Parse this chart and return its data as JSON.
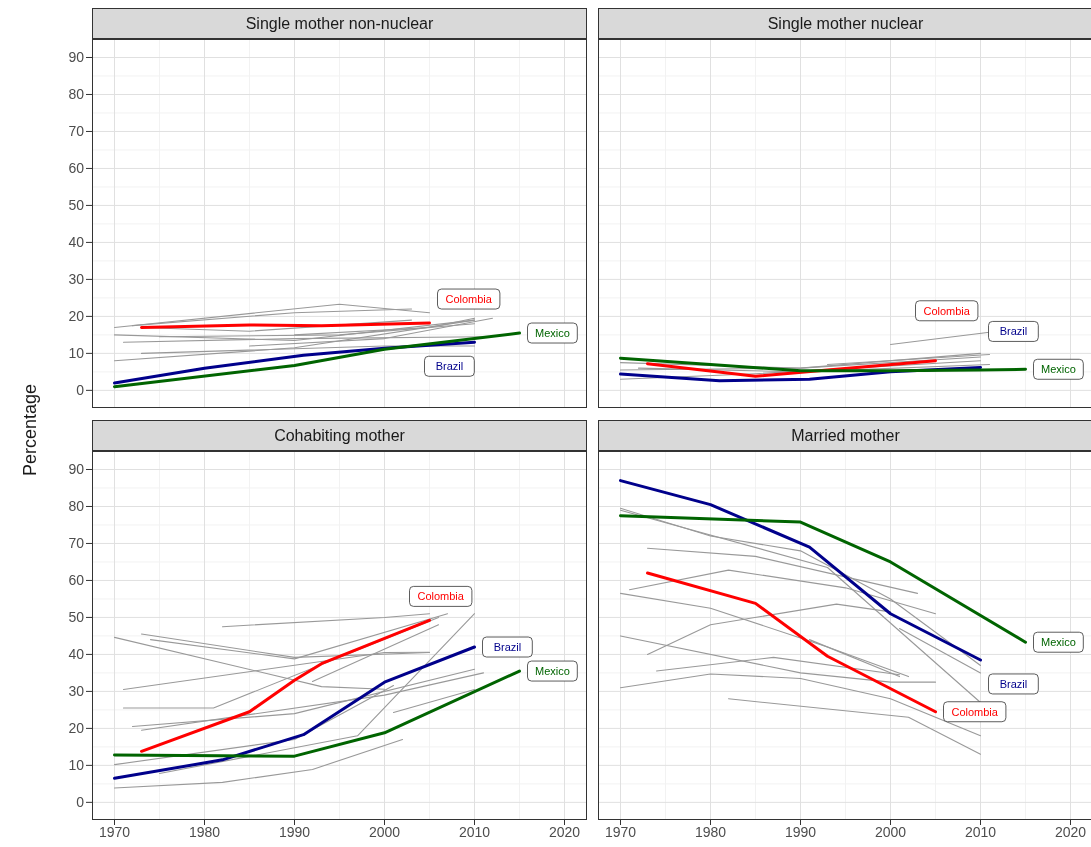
{
  "chart_data": [
    {
      "type": "line",
      "title": "Single mother non-nuclear",
      "ylabel": "Percentage",
      "xlim": [
        1967.5,
        2022.5
      ],
      "ylim": [
        -4.5,
        95
      ],
      "xticks": [
        1970,
        1980,
        1990,
        2000,
        2010,
        2020
      ],
      "yticks": [
        0,
        10,
        20,
        30,
        40,
        50,
        60,
        70,
        80,
        90
      ],
      "grid": true,
      "tick_labels": "y",
      "series": [
        {
          "color": "#999999",
          "x": [
            1970,
            1990,
            2010
          ],
          "values": [
            15,
            13.5,
            19
          ]
        },
        {
          "color": "#999999",
          "x": [
            1970,
            1990,
            2010
          ],
          "values": [
            8,
            11.5,
            19
          ]
        },
        {
          "color": "#999999",
          "x": [
            1973,
            2000,
            2010
          ],
          "values": [
            10,
            12,
            12
          ]
        },
        {
          "color": "#999999",
          "x": [
            1971,
            1990,
            2011
          ],
          "values": [
            13,
            14,
            14.5
          ]
        },
        {
          "color": "#999999",
          "x": [
            1973,
            1985,
            2003
          ],
          "values": [
            17,
            16,
            19
          ]
        },
        {
          "color": "#999999",
          "x": [
            1990,
            2005,
            2010
          ],
          "values": [
            15,
            17,
            19.5
          ]
        },
        {
          "color": "#999999",
          "x": [
            1975,
            1995,
            2010
          ],
          "values": [
            14.5,
            15,
            18
          ]
        },
        {
          "color": "#999999",
          "x": [
            1970,
            1995,
            2005
          ],
          "values": [
            17,
            23.3,
            21
          ]
        },
        {
          "color": "#999999",
          "x": [
            1972,
            1990,
            2003
          ],
          "values": [
            17.5,
            21,
            22
          ]
        },
        {
          "color": "#999999",
          "x": [
            1985,
            2000,
            2012
          ],
          "values": [
            12,
            14,
            19.5
          ]
        },
        {
          "name": "Colombia",
          "color": "#ff0000",
          "x": [
            1973,
            1985,
            1993,
            2005
          ],
          "values": [
            17,
            17.7,
            17.5,
            18.2
          ]
        },
        {
          "name": "Brazil",
          "color": "#00008b",
          "x": [
            1970,
            1980,
            1991,
            2000,
            2010
          ],
          "values": [
            2,
            6,
            9.5,
            11.4,
            13
          ]
        },
        {
          "name": "Mexico",
          "color": "#006400",
          "x": [
            1970,
            1990,
            2000,
            2015
          ],
          "values": [
            1,
            6.7,
            11.1,
            15.5
          ]
        }
      ]
    },
    {
      "type": "line",
      "title": "Single mother nuclear",
      "xlim": [
        1967.5,
        2022.5
      ],
      "ylim": [
        -4.5,
        95
      ],
      "xticks": [
        1970,
        1980,
        1990,
        2000,
        2010,
        2020
      ],
      "yticks": [
        0,
        10,
        20,
        30,
        40,
        50,
        60,
        70,
        80,
        90
      ],
      "grid": true,
      "tick_labels": false,
      "series": [
        {
          "color": "#999999",
          "x": [
            1970,
            1990,
            2010
          ],
          "values": [
            7.5,
            6,
            10
          ]
        },
        {
          "color": "#999999",
          "x": [
            1993,
            2011
          ],
          "values": [
            7,
            9.7
          ]
        },
        {
          "color": "#999999",
          "x": [
            1970,
            1985,
            2010
          ],
          "values": [
            3,
            4.5,
            8
          ]
        },
        {
          "color": "#999999",
          "x": [
            1970,
            1990,
            2010
          ],
          "values": [
            5.5,
            6,
            9
          ]
        },
        {
          "color": "#999999",
          "x": [
            2000,
            2011
          ],
          "values": [
            12.4,
            15.7
          ]
        },
        {
          "color": "#999999",
          "x": [
            1972,
            1990,
            2011
          ],
          "values": [
            6,
            5,
            7
          ]
        },
        {
          "name": "Colombia",
          "color": "#ff0000",
          "x": [
            1973,
            1985,
            1993,
            2005
          ],
          "values": [
            7.2,
            3.8,
            5.5,
            8
          ]
        },
        {
          "name": "Brazil",
          "color": "#00008b",
          "x": [
            1970,
            1981,
            1991,
            2000,
            2010
          ],
          "values": [
            4.4,
            2.6,
            3,
            5,
            6.2
          ]
        },
        {
          "name": "Mexico",
          "color": "#006400",
          "x": [
            1970,
            1980,
            1990,
            2000,
            2010,
            2015
          ],
          "values": [
            8.7,
            7,
            5.3,
            5.3,
            5.5,
            5.7
          ]
        }
      ]
    },
    {
      "type": "line",
      "title": "Cohabiting mother",
      "xlim": [
        1967.5,
        2022.5
      ],
      "ylim": [
        -4.5,
        95
      ],
      "xticks": [
        1970,
        1980,
        1990,
        2000,
        2010,
        2020
      ],
      "yticks": [
        0,
        10,
        20,
        30,
        40,
        50,
        60,
        70,
        80,
        90
      ],
      "grid": true,
      "series": [
        {
          "color": "#999999",
          "x": [
            1970,
            1993,
            2000
          ],
          "values": [
            44.6,
            31.3,
            30.6
          ]
        },
        {
          "color": "#999999",
          "x": [
            1973,
            1990,
            2005
          ],
          "values": [
            45.5,
            39.2,
            40.5
          ]
        },
        {
          "color": "#999999",
          "x": [
            1982,
            2000,
            2005
          ],
          "values": [
            47.5,
            50,
            51
          ]
        },
        {
          "color": "#999999",
          "x": [
            1974,
            1990,
            2007
          ],
          "values": [
            44,
            38.8,
            51
          ]
        },
        {
          "color": "#999999",
          "x": [
            1971,
            2000,
            2005
          ],
          "values": [
            30.5,
            40.5,
            40.6
          ]
        },
        {
          "color": "#999999",
          "x": [
            1971,
            1981,
            2006
          ],
          "values": [
            25.5,
            25.5,
            50
          ]
        },
        {
          "color": "#999999",
          "x": [
            1992,
            2006
          ],
          "values": [
            32.7,
            48
          ]
        },
        {
          "color": "#999999",
          "x": [
            1972,
            1990,
            2010
          ],
          "values": [
            20.5,
            24,
            36
          ]
        },
        {
          "color": "#999999",
          "x": [
            1973,
            2000,
            2011
          ],
          "values": [
            19.5,
            29,
            35
          ]
        },
        {
          "color": "#999999",
          "x": [
            1970,
            1990,
            2001
          ],
          "values": [
            10.2,
            17,
            31.6
          ]
        },
        {
          "color": "#999999",
          "x": [
            1975,
            1997,
            2010
          ],
          "values": [
            7.8,
            18,
            51
          ]
        },
        {
          "color": "#999999",
          "x": [
            1970,
            1982,
            1992,
            2002
          ],
          "values": [
            3.9,
            5.4,
            8.9,
            17
          ]
        },
        {
          "color": "#999999",
          "x": [
            2001,
            2010
          ],
          "values": [
            24.3,
            30.5
          ]
        },
        {
          "name": "Colombia",
          "color": "#ff0000",
          "x": [
            1973,
            1985,
            1990,
            1993,
            2005
          ],
          "values": [
            13.8,
            24.5,
            33,
            37.5,
            49.2
          ]
        },
        {
          "name": "Brazil",
          "color": "#00008b",
          "x": [
            1970,
            1982,
            1991,
            2000,
            2010
          ],
          "values": [
            6.5,
            11.5,
            18.3,
            32.5,
            42
          ]
        },
        {
          "name": "Mexico",
          "color": "#006400",
          "x": [
            1970,
            1990,
            2000,
            2015
          ],
          "values": [
            12.8,
            12.5,
            18.8,
            35.5
          ]
        }
      ]
    },
    {
      "type": "line",
      "title": "Married mother",
      "xlim": [
        1967.5,
        2022.5
      ],
      "ylim": [
        -4.5,
        95
      ],
      "xticks": [
        1970,
        1980,
        1990,
        2000,
        2010,
        2020
      ],
      "yticks": [
        0,
        10,
        20,
        30,
        40,
        50,
        60,
        70,
        80,
        90
      ],
      "grid": true,
      "tick_labels": "x",
      "series": [
        {
          "color": "#999999",
          "x": [
            1970,
            1980,
            1990,
            2000,
            2010
          ],
          "values": [
            79.5,
            72,
            68,
            55,
            37
          ]
        },
        {
          "color": "#999999",
          "x": [
            1970,
            1993,
            2010
          ],
          "values": [
            79,
            63.5,
            27
          ]
        },
        {
          "color": "#999999",
          "x": [
            1973,
            1985,
            2003
          ],
          "values": [
            68.7,
            66.5,
            56.5
          ]
        },
        {
          "color": "#999999",
          "x": [
            1971,
            1982,
            1995,
            2005
          ],
          "values": [
            57.5,
            62.8,
            58,
            51
          ]
        },
        {
          "color": "#999999",
          "x": [
            1970,
            1980,
            1993,
            2002
          ],
          "values": [
            56.5,
            52.5,
            42,
            34
          ]
        },
        {
          "color": "#999999",
          "x": [
            1973,
            1980,
            1994,
            2000
          ],
          "values": [
            40,
            48,
            53.6,
            51.5
          ]
        },
        {
          "color": "#999999",
          "x": [
            1970,
            1990,
            2000,
            2005
          ],
          "values": [
            45,
            35,
            32.5,
            32.5
          ]
        },
        {
          "color": "#999999",
          "x": [
            1974,
            1987,
            2001
          ],
          "values": [
            35.5,
            39.2,
            34.5
          ]
        },
        {
          "color": "#999999",
          "x": [
            1970,
            1980,
            1990,
            2000,
            2010
          ],
          "values": [
            31,
            34.7,
            33.5,
            28,
            18
          ]
        },
        {
          "color": "#999999",
          "x": [
            1982,
            2002,
            2010
          ],
          "values": [
            28,
            23,
            13
          ]
        },
        {
          "color": "#999999",
          "x": [
            1991,
            2001
          ],
          "values": [
            44,
            34
          ]
        },
        {
          "color": "#999999",
          "x": [
            2001,
            2010
          ],
          "values": [
            47,
            35
          ]
        },
        {
          "name": "Colombia",
          "color": "#ff0000",
          "x": [
            1973,
            1985,
            1993,
            2005
          ],
          "values": [
            62,
            53.8,
            39.5,
            24.5
          ]
        },
        {
          "name": "Brazil",
          "color": "#00008b",
          "x": [
            1970,
            1980,
            1991,
            2000,
            2010
          ],
          "values": [
            87,
            80.5,
            69,
            51,
            38.5
          ]
        },
        {
          "name": "Mexico",
          "color": "#006400",
          "x": [
            1970,
            1990,
            2000,
            2015
          ],
          "values": [
            77.5,
            75.8,
            65,
            43.3
          ]
        }
      ]
    }
  ]
}
